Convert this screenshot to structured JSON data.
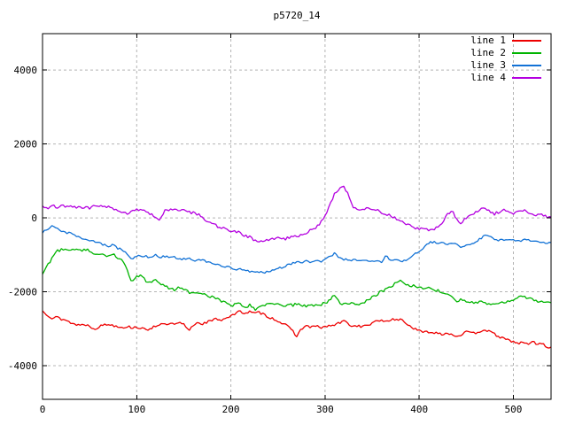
{
  "window": {
    "background_color": "#ffffff",
    "border_color": "#000000",
    "grid_color": "#b4b4b4",
    "text_color": "#000000"
  },
  "chart_data": {
    "type": "line",
    "title": "p5720_14",
    "xlabel": "",
    "ylabel": "",
    "xlim": [
      0,
      540
    ],
    "ylim": [
      -4910,
      4985
    ],
    "x_ticks": [
      0,
      100,
      200,
      300,
      400,
      500
    ],
    "y_ticks": [
      -4000,
      -2000,
      0,
      2000,
      4000
    ],
    "grid": true,
    "grid_style": "dashed",
    "legend_position": "top-right-inside",
    "x_start": 0,
    "x_step": 5,
    "series": [
      {
        "name": "line 1",
        "color": "#ee0000",
        "jitter": 35,
        "y": [
          -2520,
          -2620,
          -2700,
          -2650,
          -2780,
          -2740,
          -2850,
          -2880,
          -2900,
          -2880,
          -2930,
          -3000,
          -2950,
          -2890,
          -2880,
          -2910,
          -2930,
          -2960,
          -2940,
          -2970,
          -2950,
          -2990,
          -3040,
          -2980,
          -2920,
          -2870,
          -2900,
          -2860,
          -2890,
          -2850,
          -2880,
          -3060,
          -2900,
          -2830,
          -2860,
          -2820,
          -2780,
          -2730,
          -2760,
          -2700,
          -2650,
          -2600,
          -2520,
          -2580,
          -2540,
          -2590,
          -2560,
          -2610,
          -2680,
          -2730,
          -2790,
          -2850,
          -2940,
          -3040,
          -3200,
          -3000,
          -2920,
          -2960,
          -2930,
          -2970,
          -2950,
          -2920,
          -2900,
          -2850,
          -2790,
          -2870,
          -2940,
          -2910,
          -2950,
          -2900,
          -2860,
          -2800,
          -2760,
          -2810,
          -2740,
          -2780,
          -2730,
          -2830,
          -2920,
          -3010,
          -3060,
          -3100,
          -3080,
          -3120,
          -3100,
          -3150,
          -3110,
          -3160,
          -3200,
          -3150,
          -3090,
          -3130,
          -3110,
          -3060,
          -3020,
          -3090,
          -3150,
          -3210,
          -3280,
          -3310,
          -3350,
          -3400,
          -3370,
          -3420,
          -3350,
          -3410,
          -3380,
          -3520,
          -3470
        ]
      },
      {
        "name": "line 2",
        "color": "#00b400",
        "jitter": 40,
        "y": [
          -1530,
          -1300,
          -1100,
          -900,
          -860,
          -820,
          -860,
          -830,
          -880,
          -850,
          -900,
          -950,
          -1010,
          -970,
          -1040,
          -1000,
          -1080,
          -1150,
          -1400,
          -1750,
          -1600,
          -1580,
          -1700,
          -1760,
          -1700,
          -1800,
          -1850,
          -1900,
          -1950,
          -1890,
          -1960,
          -2000,
          -2050,
          -2000,
          -2080,
          -2100,
          -2150,
          -2200,
          -2260,
          -2320,
          -2390,
          -2350,
          -2300,
          -2420,
          -2360,
          -2480,
          -2420,
          -2350,
          -2320,
          -2370,
          -2340,
          -2400,
          -2330,
          -2370,
          -2330,
          -2360,
          -2390,
          -2340,
          -2380,
          -2350,
          -2280,
          -2250,
          -2080,
          -2280,
          -2330,
          -2290,
          -2330,
          -2360,
          -2300,
          -2240,
          -2160,
          -2060,
          -1990,
          -1940,
          -1880,
          -1740,
          -1680,
          -1790,
          -1850,
          -1840,
          -1890,
          -1940,
          -1890,
          -1950,
          -1970,
          -2000,
          -2090,
          -2140,
          -2250,
          -2200,
          -2250,
          -2300,
          -2320,
          -2270,
          -2300,
          -2350,
          -2370,
          -2290,
          -2310,
          -2240,
          -2200,
          -2150,
          -2120,
          -2160,
          -2210,
          -2260,
          -2230,
          -2280,
          -2330
        ]
      },
      {
        "name": "line 3",
        "color": "#1272d6",
        "jitter": 30,
        "y": [
          -400,
          -300,
          -230,
          -290,
          -380,
          -400,
          -430,
          -480,
          -530,
          -560,
          -600,
          -640,
          -680,
          -720,
          -760,
          -740,
          -820,
          -860,
          -1000,
          -1120,
          -1020,
          -1060,
          -1040,
          -1090,
          -1000,
          -1070,
          -1040,
          -1080,
          -1060,
          -1100,
          -1120,
          -1080,
          -1160,
          -1130,
          -1160,
          -1190,
          -1230,
          -1260,
          -1290,
          -1330,
          -1350,
          -1380,
          -1400,
          -1430,
          -1450,
          -1480,
          -1460,
          -1490,
          -1450,
          -1420,
          -1380,
          -1330,
          -1280,
          -1230,
          -1180,
          -1200,
          -1170,
          -1190,
          -1160,
          -1180,
          -1130,
          -1050,
          -960,
          -1060,
          -1120,
          -1150,
          -1130,
          -1160,
          -1140,
          -1170,
          -1140,
          -1160,
          -1190,
          -1030,
          -1170,
          -1150,
          -1180,
          -1140,
          -1090,
          -990,
          -920,
          -790,
          -680,
          -650,
          -700,
          -670,
          -720,
          -690,
          -740,
          -820,
          -740,
          -690,
          -640,
          -560,
          -460,
          -520,
          -560,
          -610,
          -580,
          -620,
          -590,
          -640,
          -610,
          -590,
          -650,
          -620,
          -670,
          -700,
          -660
        ]
      },
      {
        "name": "line 4",
        "color": "#b400e0",
        "jitter": 40,
        "y": [
          300,
          260,
          330,
          280,
          320,
          290,
          340,
          280,
          260,
          300,
          270,
          310,
          340,
          290,
          310,
          260,
          230,
          160,
          90,
          200,
          240,
          220,
          170,
          90,
          30,
          -60,
          250,
          200,
          230,
          180,
          210,
          160,
          130,
          100,
          20,
          -80,
          -150,
          -220,
          -270,
          -300,
          -340,
          -380,
          -410,
          -480,
          -520,
          -620,
          -650,
          -600,
          -630,
          -560,
          -540,
          -580,
          -550,
          -500,
          -520,
          -480,
          -400,
          -330,
          -260,
          -150,
          60,
          350,
          650,
          780,
          830,
          620,
          300,
          230,
          270,
          250,
          240,
          220,
          160,
          110,
          60,
          0,
          -90,
          -160,
          -210,
          -280,
          -300,
          -270,
          -330,
          -300,
          -250,
          -100,
          80,
          240,
          -60,
          -140,
          0,
          100,
          160,
          210,
          260,
          170,
          110,
          160,
          200,
          140,
          110,
          180,
          220,
          150,
          100,
          60,
          110,
          20,
          50
        ]
      }
    ]
  }
}
